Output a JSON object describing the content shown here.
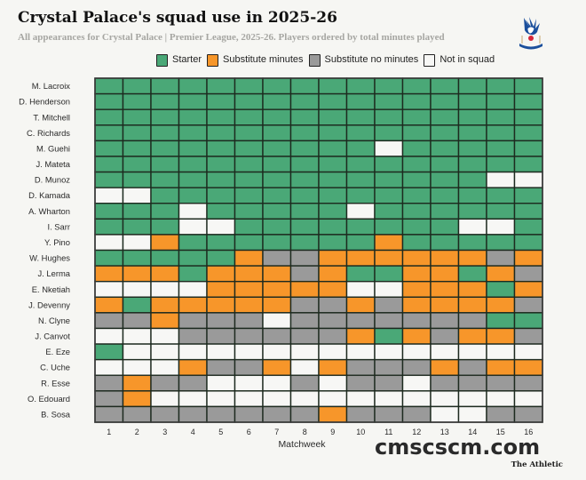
{
  "header": {
    "title": "Crystal Palace's squad use in 2025-26",
    "subtitle": "All appearances for Crystal Palace | Premier League, 2025-26. Players ordered by total minutes played",
    "logo_icon": "crystal-palace-crest-icon"
  },
  "legend": [
    {
      "key": "S",
      "label": "Starter",
      "color": "#4aa877"
    },
    {
      "key": "O",
      "label": "Substitute minutes",
      "color": "#f7962a"
    },
    {
      "key": "G",
      "label": "Substitute no minutes",
      "color": "#9a9a9a"
    },
    {
      "key": "W",
      "label": "Not in squad",
      "color": "#f7f7f5"
    }
  ],
  "footer": {
    "watermark": "cmscscm.com",
    "credit": "The Athletic"
  },
  "chart_data": {
    "type": "heatmap",
    "title": "Crystal Palace's squad use in 2025-26",
    "xlabel": "Matchweek",
    "ylabel": "",
    "x": [
      "1",
      "2",
      "3",
      "4",
      "5",
      "6",
      "7",
      "8",
      "9",
      "10",
      "11",
      "12",
      "13",
      "14",
      "15",
      "16"
    ],
    "categories_legend": {
      "S": "Starter",
      "O": "Substitute minutes",
      "G": "Substitute no minutes",
      "W": "Not in squad"
    },
    "rows": [
      {
        "player": "M. Lacroix",
        "status": [
          "S",
          "S",
          "S",
          "S",
          "S",
          "S",
          "S",
          "S",
          "S",
          "S",
          "S",
          "S",
          "S",
          "S",
          "S",
          "S"
        ]
      },
      {
        "player": "D. Henderson",
        "status": [
          "S",
          "S",
          "S",
          "S",
          "S",
          "S",
          "S",
          "S",
          "S",
          "S",
          "S",
          "S",
          "S",
          "S",
          "S",
          "S"
        ]
      },
      {
        "player": "T. Mitchell",
        "status": [
          "S",
          "S",
          "S",
          "S",
          "S",
          "S",
          "S",
          "S",
          "S",
          "S",
          "S",
          "S",
          "S",
          "S",
          "S",
          "S"
        ]
      },
      {
        "player": "C. Richards",
        "status": [
          "S",
          "S",
          "S",
          "S",
          "S",
          "S",
          "S",
          "S",
          "S",
          "S",
          "S",
          "S",
          "S",
          "S",
          "S",
          "S"
        ]
      },
      {
        "player": "M. Guehi",
        "status": [
          "S",
          "S",
          "S",
          "S",
          "S",
          "S",
          "S",
          "S",
          "S",
          "S",
          "W",
          "S",
          "S",
          "S",
          "S",
          "S"
        ]
      },
      {
        "player": "J. Mateta",
        "status": [
          "S",
          "S",
          "S",
          "S",
          "S",
          "S",
          "S",
          "S",
          "S",
          "S",
          "S",
          "S",
          "S",
          "S",
          "S",
          "S"
        ]
      },
      {
        "player": "D. Munoz",
        "status": [
          "S",
          "S",
          "S",
          "S",
          "S",
          "S",
          "S",
          "S",
          "S",
          "S",
          "S",
          "S",
          "S",
          "S",
          "W",
          "W"
        ]
      },
      {
        "player": "D. Kamada",
        "status": [
          "W",
          "W",
          "S",
          "S",
          "S",
          "S",
          "S",
          "S",
          "S",
          "S",
          "S",
          "S",
          "S",
          "S",
          "S",
          "S"
        ]
      },
      {
        "player": "A. Wharton",
        "status": [
          "S",
          "S",
          "S",
          "W",
          "S",
          "S",
          "S",
          "S",
          "S",
          "W",
          "S",
          "S",
          "S",
          "S",
          "S",
          "S"
        ]
      },
      {
        "player": "I. Sarr",
        "status": [
          "S",
          "S",
          "S",
          "W",
          "W",
          "S",
          "S",
          "S",
          "S",
          "S",
          "S",
          "S",
          "S",
          "W",
          "W",
          "S"
        ]
      },
      {
        "player": "Y. Pino",
        "status": [
          "W",
          "W",
          "O",
          "S",
          "S",
          "S",
          "S",
          "S",
          "S",
          "S",
          "O",
          "S",
          "S",
          "S",
          "S",
          "S"
        ]
      },
      {
        "player": "W. Hughes",
        "status": [
          "S",
          "S",
          "S",
          "S",
          "S",
          "O",
          "G",
          "G",
          "O",
          "O",
          "O",
          "O",
          "O",
          "O",
          "G",
          "O"
        ]
      },
      {
        "player": "J. Lerma",
        "status": [
          "O",
          "O",
          "O",
          "S",
          "O",
          "O",
          "O",
          "G",
          "O",
          "S",
          "S",
          "O",
          "O",
          "S",
          "O",
          "G"
        ]
      },
      {
        "player": "E. Nketiah",
        "status": [
          "W",
          "W",
          "W",
          "W",
          "O",
          "O",
          "O",
          "O",
          "O",
          "W",
          "W",
          "O",
          "O",
          "O",
          "S",
          "O"
        ]
      },
      {
        "player": "J. Devenny",
        "status": [
          "O",
          "S",
          "O",
          "O",
          "O",
          "O",
          "O",
          "G",
          "G",
          "O",
          "G",
          "O",
          "O",
          "O",
          "O",
          "G"
        ]
      },
      {
        "player": "N. Clyne",
        "status": [
          "G",
          "G",
          "O",
          "G",
          "G",
          "G",
          "W",
          "G",
          "G",
          "G",
          "G",
          "G",
          "G",
          "G",
          "S",
          "S"
        ]
      },
      {
        "player": "J. Canvot",
        "status": [
          "W",
          "W",
          "W",
          "G",
          "G",
          "G",
          "G",
          "G",
          "G",
          "O",
          "S",
          "O",
          "G",
          "O",
          "O",
          "G"
        ]
      },
      {
        "player": "E. Eze",
        "status": [
          "S",
          "W",
          "W",
          "W",
          "W",
          "W",
          "W",
          "W",
          "W",
          "W",
          "W",
          "W",
          "W",
          "W",
          "W",
          "W"
        ]
      },
      {
        "player": "C. Uche",
        "status": [
          "W",
          "W",
          "W",
          "O",
          "G",
          "G",
          "O",
          "W",
          "O",
          "G",
          "G",
          "G",
          "O",
          "G",
          "O",
          "O"
        ]
      },
      {
        "player": "R. Esse",
        "status": [
          "G",
          "O",
          "G",
          "G",
          "W",
          "W",
          "W",
          "G",
          "W",
          "G",
          "G",
          "W",
          "G",
          "G",
          "G",
          "G"
        ]
      },
      {
        "player": "O. Edouard",
        "status": [
          "G",
          "O",
          "W",
          "W",
          "W",
          "W",
          "W",
          "W",
          "W",
          "W",
          "W",
          "W",
          "W",
          "W",
          "W",
          "W"
        ]
      },
      {
        "player": "B. Sosa",
        "status": [
          "G",
          "G",
          "G",
          "G",
          "G",
          "G",
          "G",
          "G",
          "O",
          "G",
          "G",
          "G",
          "W",
          "W",
          "G",
          "G"
        ]
      }
    ]
  }
}
